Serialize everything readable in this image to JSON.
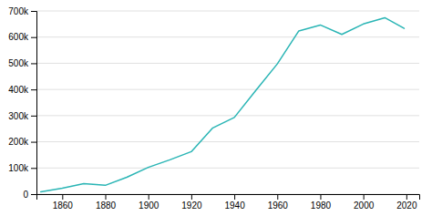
{
  "chart_data": {
    "type": "line",
    "x": [
      1850,
      1860,
      1870,
      1880,
      1890,
      1900,
      1910,
      1920,
      1930,
      1940,
      1950,
      1960,
      1970,
      1980,
      1990,
      2000,
      2010,
      2019
    ],
    "values": [
      8841,
      22623,
      40226,
      33592,
      64495,
      102320,
      131105,
      162351,
      253143,
      292942,
      396000,
      497524,
      623530,
      646356,
      610337,
      650100,
      674028,
      633104
    ],
    "color": "#2ab5b5",
    "xlim": [
      1848,
      2026
    ],
    "ylim": [
      0,
      700000
    ],
    "xticks": [
      1860,
      1880,
      1900,
      1920,
      1940,
      1960,
      1980,
      2000,
      2020
    ],
    "yticks": [
      0,
      {
        "value": 100000,
        "label": "100k"
      },
      {
        "value": 200000,
        "label": "200k"
      },
      {
        "value": 300000,
        "label": "300k"
      },
      {
        "value": 400000,
        "label": "400k"
      },
      {
        "value": 500000,
        "label": "500k"
      },
      {
        "value": 600000,
        "label": "600k"
      },
      {
        "value": 700000,
        "label": "700k"
      }
    ],
    "grid": "y"
  }
}
